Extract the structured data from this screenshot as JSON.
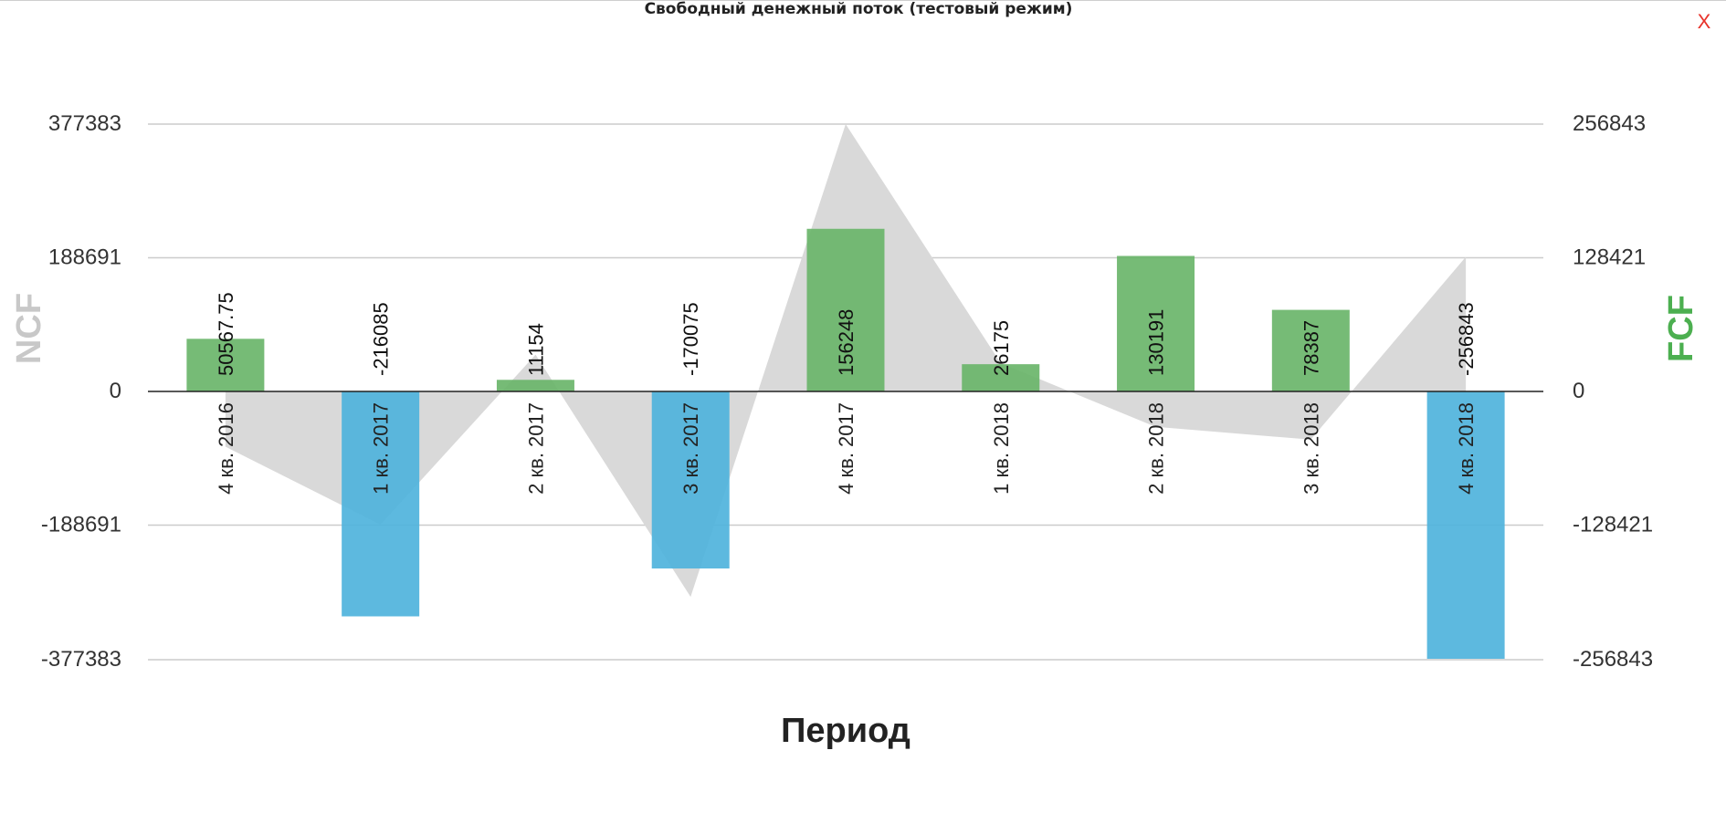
{
  "dialog": {
    "title": "Свободный денежный поток (тестовый режим)",
    "close_label": "X"
  },
  "colors": {
    "positive_bar": "#6ab56a",
    "negative_bar": "#4fb3dc",
    "area": "#d9d9d9",
    "fcf_axis_title": "#4caf50",
    "ncf_axis_title": "#c8c8c8",
    "grid": "#cccccc",
    "baseline": "#222222"
  },
  "chart_data": {
    "type": "bar",
    "xlabel": "Период",
    "categories": [
      "4 кв. 2016",
      "1 кв. 2017",
      "2 кв. 2017",
      "3 кв. 2017",
      "4 кв. 2017",
      "1 кв. 2018",
      "2 кв. 2018",
      "3 кв. 2018",
      "4 кв. 2018"
    ],
    "bar_labels": [
      "50567.75",
      "-216085",
      "11154",
      "-170075",
      "156248",
      "26175",
      "130191",
      "78387",
      "-256843"
    ],
    "series": [
      {
        "name": "FCF",
        "type": "bar",
        "axis": "right",
        "values": [
          50567.75,
          -216085,
          11154,
          -170075,
          156248,
          26175,
          130191,
          78387,
          -256843
        ]
      },
      {
        "name": "NCF",
        "type": "area",
        "axis": "left",
        "values": [
          -78000,
          -188000,
          52000,
          -290000,
          377383,
          40000,
          -50000,
          -68000,
          190000
        ]
      }
    ],
    "left_axis": {
      "title": "NCF",
      "range": [
        -377383,
        377383
      ],
      "ticks": [
        "377383",
        "188691",
        "0",
        "-188691",
        "-377383"
      ]
    },
    "right_axis": {
      "title": "FCF",
      "range": [
        -256843,
        256843
      ],
      "ticks": [
        "256843",
        "128421",
        "0",
        "-128421",
        "-256843"
      ]
    },
    "grid": true
  }
}
